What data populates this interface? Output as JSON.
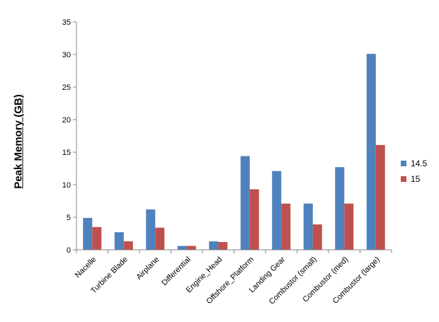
{
  "chart_data": {
    "type": "bar",
    "title": "",
    "xlabel": "",
    "ylabel": "Peak Memory (GB)",
    "ylim": [
      0,
      35
    ],
    "yticks": [
      "0",
      "5",
      "10",
      "15",
      "20",
      "25",
      "30",
      "35"
    ],
    "grid": false,
    "legend_position": "right",
    "categories": [
      "Nacelle",
      "Turbine Blade",
      "Airplane",
      "Differential",
      "Engine_Head",
      "Offshore_Platform",
      "Landing Gear",
      "Combustor (small)",
      "Combustor (med)",
      "Combustor (large)"
    ],
    "series": [
      {
        "name": "14.5",
        "color": "#4F81BD",
        "values": [
          4.9,
          2.7,
          6.2,
          0.6,
          1.3,
          14.4,
          12.1,
          7.1,
          12.7,
          30.1
        ]
      },
      {
        "name": "15",
        "color": "#C0504D",
        "values": [
          3.5,
          1.3,
          3.4,
          0.6,
          1.2,
          9.3,
          7.1,
          3.9,
          7.1,
          16.1
        ]
      }
    ]
  }
}
